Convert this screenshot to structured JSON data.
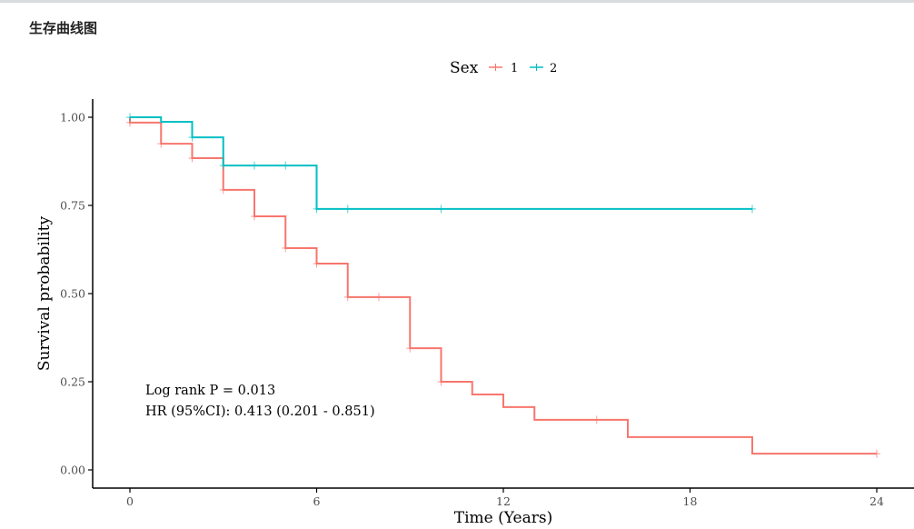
{
  "panel": {
    "title": "生存曲线图"
  },
  "chart_data": {
    "type": "line",
    "subtype": "kaplan-meier-step",
    "xlabel": "Time (Years)",
    "ylabel": "Survival probability",
    "xlim": [
      -1.2,
      25.2
    ],
    "ylim": [
      -0.05,
      1.05
    ],
    "x_ticks": [
      0,
      6,
      12,
      18,
      24
    ],
    "x_tick_labels": [
      "0",
      "6",
      "12",
      "18",
      "24"
    ],
    "y_ticks": [
      0,
      0.25,
      0.5,
      0.75,
      1
    ],
    "y_tick_labels": [
      "0.00",
      "0.25",
      "0.50",
      "0.75",
      "1.00"
    ],
    "grid": false,
    "legend": {
      "title": "Sex",
      "placement": "top",
      "entries": [
        {
          "label": "1",
          "color": "#F8766D"
        },
        {
          "label": "2",
          "color": "#00BFC4"
        }
      ]
    },
    "series": [
      {
        "name": "1",
        "color": "#F8766D",
        "steps": [
          [
            0,
            1.0
          ],
          [
            0,
            0.985
          ],
          [
            1,
            0.925
          ],
          [
            2,
            0.884
          ],
          [
            3,
            0.794
          ],
          [
            4,
            0.719
          ],
          [
            5,
            0.629
          ],
          [
            6,
            0.585
          ],
          [
            7,
            0.49
          ],
          [
            9,
            0.345
          ],
          [
            10,
            0.25
          ],
          [
            11,
            0.214
          ],
          [
            12,
            0.178
          ],
          [
            13,
            0.142
          ],
          [
            16,
            0.093
          ],
          [
            20,
            0.046
          ]
        ],
        "end_time": 24,
        "censor_times": [
          0,
          1,
          2,
          3,
          4,
          5,
          6,
          7,
          8,
          9,
          10,
          15,
          24
        ]
      },
      {
        "name": "2",
        "color": "#00BFC4",
        "steps": [
          [
            0,
            1.0
          ],
          [
            1,
            0.987
          ],
          [
            2,
            0.943
          ],
          [
            3,
            0.863
          ],
          [
            6,
            0.74
          ]
        ],
        "end_time": 20,
        "censor_times": [
          0,
          2,
          3,
          4,
          5,
          6,
          7,
          10,
          20
        ]
      }
    ],
    "annotations": [
      "Log rank P = 0.013",
      "HR (95%CI): 0.413 (0.201 - 0.851)"
    ]
  }
}
